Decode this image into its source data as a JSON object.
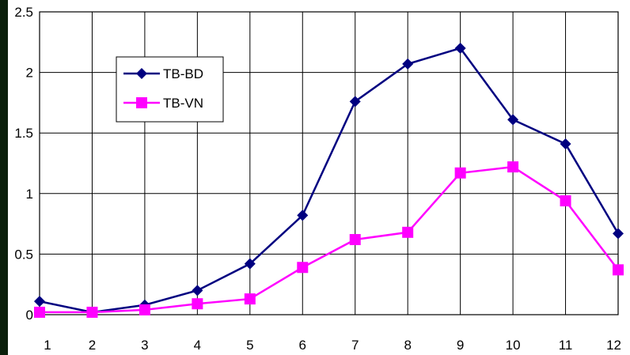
{
  "chart_data": {
    "type": "line",
    "x": [
      1,
      2,
      3,
      4,
      5,
      6,
      7,
      8,
      9,
      10,
      11,
      12
    ],
    "series": [
      {
        "name": "TB-BD",
        "color": "#000080",
        "marker": "diamond",
        "values": [
          0.11,
          0.02,
          0.08,
          0.2,
          0.42,
          0.82,
          1.76,
          2.07,
          2.2,
          1.61,
          1.41,
          0.67
        ]
      },
      {
        "name": "TB-VN",
        "color": "#ff00ff",
        "marker": "square",
        "values": [
          0.02,
          0.02,
          0.04,
          0.09,
          0.13,
          0.39,
          0.62,
          0.68,
          1.17,
          1.22,
          0.94,
          0.37
        ]
      }
    ],
    "ylim": [
      0,
      2.5
    ],
    "yticks": [
      "0",
      "0.5",
      "1",
      "1.5",
      "2",
      "2.5"
    ],
    "xticks": [
      "1",
      "2",
      "3",
      "4",
      "5",
      "6",
      "7",
      "8",
      "9",
      "10",
      "11",
      "12"
    ],
    "grid": true,
    "legend_position": "upper-left"
  }
}
